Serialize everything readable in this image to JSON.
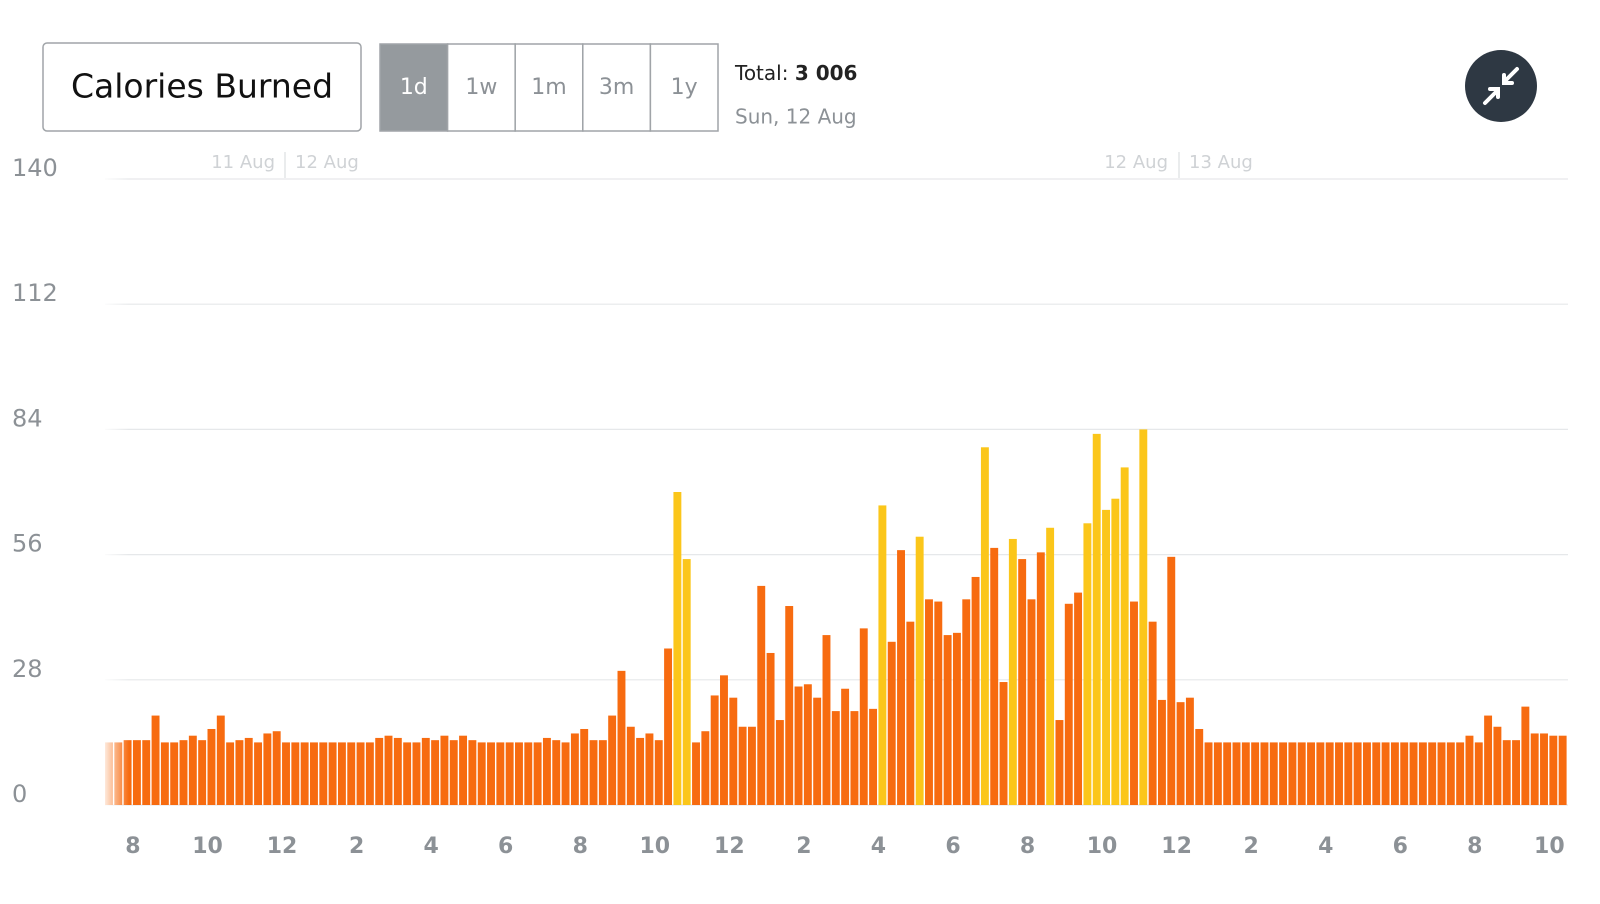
{
  "header": {
    "title": "Calories Burned",
    "ranges": [
      "1d",
      "1w",
      "1m",
      "3m",
      "1y"
    ],
    "active_range": "1d",
    "total_label": "Total:",
    "total": "3 006",
    "date": "Sun, 12 Aug"
  },
  "chart_data": {
    "type": "bar",
    "categories": [
      null,
      null,
      null,
      "8",
      null,
      null,
      null,
      null,
      null,
      null,
      null,
      "10",
      null,
      null,
      null,
      null,
      null,
      null,
      null,
      "12",
      null,
      null,
      null,
      null,
      null,
      null,
      null,
      "2",
      null,
      null,
      null,
      null,
      null,
      null,
      null,
      "4",
      null,
      null,
      null,
      null,
      null,
      null,
      null,
      "6",
      null,
      null,
      null,
      null,
      null,
      null,
      null,
      "8",
      null,
      null,
      null,
      null,
      null,
      null,
      null,
      "10",
      null,
      null,
      null,
      null,
      null,
      null,
      null,
      "12",
      null,
      null,
      null,
      null,
      null,
      null,
      null,
      "2",
      null,
      null,
      null,
      null,
      null,
      null,
      null,
      "4",
      null,
      null,
      null,
      null,
      null,
      null,
      null,
      "6",
      null,
      null,
      null,
      null,
      null,
      null,
      null,
      "8",
      null,
      null,
      null,
      null,
      null,
      null,
      null,
      "10",
      null,
      null,
      null,
      null,
      null,
      null,
      null,
      "12",
      null,
      null,
      null,
      null,
      null,
      null,
      null,
      "2",
      null,
      null,
      null,
      null,
      null,
      null,
      null,
      "4",
      null,
      null,
      null,
      null,
      null,
      null,
      null,
      "6",
      null,
      null,
      null,
      null,
      null,
      null,
      null,
      "8",
      null,
      null,
      null,
      null,
      null,
      null,
      null,
      "10",
      null
    ],
    "values": [
      14,
      14,
      14.5,
      14.5,
      14.5,
      20,
      14,
      14,
      14.5,
      15.5,
      14.5,
      17,
      20,
      14,
      14.5,
      15,
      14,
      16,
      16.5,
      14,
      14,
      14,
      14,
      14,
      14,
      14,
      14,
      14,
      14,
      15,
      15.5,
      15,
      14,
      14,
      15,
      14.5,
      15.5,
      14.5,
      15.5,
      14.5,
      14,
      14,
      14,
      14,
      14,
      14,
      14,
      15,
      14.5,
      14,
      16,
      17,
      14.5,
      14.5,
      20,
      30,
      17.5,
      15,
      16,
      14.5,
      35,
      70,
      55,
      14,
      16.5,
      24.5,
      29,
      24,
      17.5,
      17.5,
      49,
      34,
      19,
      44.5,
      26.5,
      27,
      24,
      38,
      21,
      26,
      21,
      39.5,
      21.5,
      67,
      36.5,
      57,
      41,
      60,
      46,
      45.5,
      38,
      38.5,
      46,
      51,
      80,
      57.5,
      27.5,
      59.5,
      55,
      46,
      56.5,
      62,
      19,
      45,
      47.5,
      63,
      83,
      66,
      68.5,
      75.5,
      45.5,
      84,
      41,
      23.5,
      55.5,
      23,
      24,
      17,
      14,
      14,
      14,
      14,
      14,
      14,
      14,
      14,
      14,
      14,
      14,
      14,
      14,
      14,
      14,
      14,
      14,
      14,
      14,
      14,
      14,
      14,
      14,
      14,
      14,
      14,
      14,
      14,
      15.5,
      14,
      20,
      17.5,
      14.5,
      14.5,
      22,
      16,
      16,
      15.5,
      15.5
    ],
    "colors": [
      "#f76b10",
      "#f76b10",
      "#f76b10",
      "#f76b10",
      "#f76b10",
      "#f76b10",
      "#f76b10",
      "#f76b10",
      "#f76b10",
      "#f76b10",
      "#f76b10",
      "#f76b10",
      "#f76b10",
      "#f76b10",
      "#f76b10",
      "#f76b10",
      "#f76b10",
      "#f76b10",
      "#f76b10",
      "#f76b10",
      "#f76b10",
      "#f76b10",
      "#f76b10",
      "#f76b10",
      "#f76b10",
      "#f76b10",
      "#f76b10",
      "#f76b10",
      "#f76b10",
      "#f76b10",
      "#f76b10",
      "#f76b10",
      "#f76b10",
      "#f76b10",
      "#f76b10",
      "#f76b10",
      "#f76b10",
      "#f76b10",
      "#f76b10",
      "#f76b10",
      "#f76b10",
      "#f76b10",
      "#f76b10",
      "#f76b10",
      "#f76b10",
      "#f76b10",
      "#f76b10",
      "#f76b10",
      "#f76b10",
      "#f76b10",
      "#f76b10",
      "#f76b10",
      "#f76b10",
      "#f76b10",
      "#f76b10",
      "#f76b10",
      "#f76b10",
      "#f76b10",
      "#f76b10",
      "#f76b10",
      "#f76b10",
      "#fbc61a",
      "#fbc61a",
      "#f76b10",
      "#f76b10",
      "#f76b10",
      "#f76b10",
      "#f76b10",
      "#f76b10",
      "#f76b10",
      "#f76b10",
      "#f76b10",
      "#f76b10",
      "#f76b10",
      "#f76b10",
      "#f76b10",
      "#f76b10",
      "#f76b10",
      "#f76b10",
      "#f76b10",
      "#f76b10",
      "#f76b10",
      "#f76b10",
      "#fbc61a",
      "#f76b10",
      "#f76b10",
      "#f76b10",
      "#fbc61a",
      "#f76b10",
      "#f76b10",
      "#f76b10",
      "#f76b10",
      "#f76b10",
      "#f76b10",
      "#fbc61a",
      "#f76b10",
      "#f76b10",
      "#fbc61a",
      "#f76b10",
      "#f76b10",
      "#f76b10",
      "#fbc61a",
      "#f76b10",
      "#f76b10",
      "#f76b10",
      "#fbc61a",
      "#fbc61a",
      "#fbc61a",
      "#fbc61a",
      "#fbc61a",
      "#f76b10",
      "#fbc61a",
      "#f76b10",
      "#f76b10",
      "#f76b10",
      "#f76b10",
      "#f76b10",
      "#f76b10",
      "#f76b10",
      "#f76b10",
      "#f76b10",
      "#f76b10",
      "#f76b10",
      "#f76b10",
      "#f76b10",
      "#f76b10",
      "#f76b10",
      "#f76b10",
      "#f76b10",
      "#f76b10",
      "#f76b10",
      "#f76b10",
      "#f76b10",
      "#f76b10",
      "#f76b10",
      "#f76b10",
      "#f76b10",
      "#f76b10",
      "#f76b10",
      "#f76b10",
      "#f76b10",
      "#f76b10",
      "#f76b10",
      "#f76b10",
      "#f76b10",
      "#f76b10",
      "#f76b10",
      "#f76b10",
      "#f76b10",
      "#f76b10",
      "#f76b10",
      "#f76b10",
      "#f76b10",
      "#f76b10",
      "#f76b10",
      "#f76b10",
      "#f76b10"
    ],
    "ylim": [
      0,
      140
    ],
    "yticks": [
      0,
      28,
      56,
      84,
      112,
      140
    ],
    "grid": true,
    "day_labels": [
      [
        "11 Aug",
        "12 Aug"
      ],
      [
        "12 Aug",
        "13 Aug"
      ]
    ]
  }
}
